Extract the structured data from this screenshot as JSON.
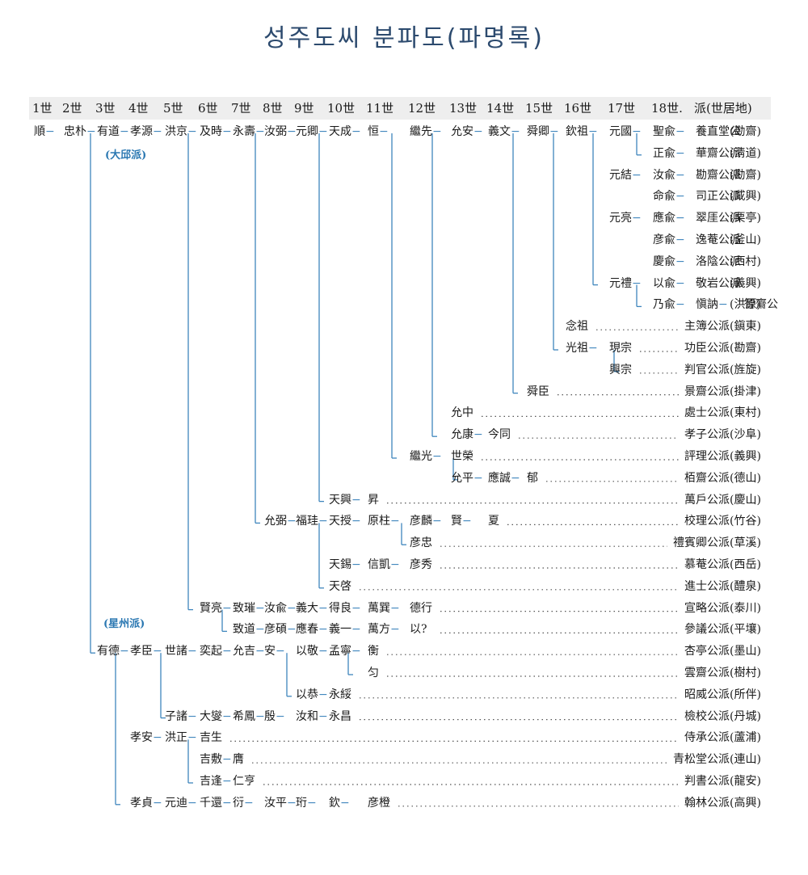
{
  "title": "성주도씨 분파도(파명록)",
  "columns": [
    "1世",
    "2世",
    "3世",
    "4世",
    "5世",
    "6世",
    "7世",
    "8世",
    "9世",
    "10世",
    "11世",
    "12世",
    "13世",
    "14世",
    "15世",
    "16世",
    "17世",
    "18世.",
    "派(世居地)"
  ],
  "branch_labels": [
    "(大邱派)",
    "(星州派)"
  ],
  "rows": [
    {
      "nodes": [
        [
          0,
          "順"
        ],
        [
          1,
          "忠朴"
        ],
        [
          2,
          "有道"
        ],
        [
          3,
          "孝源"
        ],
        [
          4,
          "洪京"
        ],
        [
          5,
          "及時"
        ],
        [
          6,
          "永壽"
        ],
        [
          7,
          "汝弼"
        ],
        [
          8,
          "元卿"
        ],
        [
          9,
          "天成"
        ],
        [
          10,
          "恒"
        ],
        [
          11,
          "繼先"
        ],
        [
          12,
          "允安"
        ],
        [
          13,
          "義文"
        ],
        [
          14,
          "舜卿"
        ],
        [
          15,
          "欽祖"
        ],
        [
          16,
          "元國"
        ],
        [
          17,
          "聖兪"
        ],
        [
          18,
          "養直堂公"
        ]
      ],
      "pai": "",
      "loc": "(勘齋)"
    },
    {
      "nodes": [
        [
          17,
          "正兪"
        ],
        [
          18,
          "華齋公派"
        ]
      ],
      "pai": "",
      "loc": "(淸道)"
    },
    {
      "nodes": [
        [
          16,
          "元結"
        ],
        [
          17,
          "汝兪"
        ],
        [
          18,
          "勘齋公派"
        ]
      ],
      "pai": "",
      "loc": "(勘齋)"
    },
    {
      "nodes": [
        [
          17,
          "命兪"
        ],
        [
          18,
          "司正公派"
        ]
      ],
      "pai": "",
      "loc": "(咸興)"
    },
    {
      "nodes": [
        [
          16,
          "元亮"
        ],
        [
          17,
          "應兪"
        ],
        [
          18,
          "翠厓公派"
        ]
      ],
      "pai": "",
      "loc": "(栗亭)"
    },
    {
      "nodes": [
        [
          17,
          "彦兪"
        ],
        [
          18,
          "逸菴公派"
        ]
      ],
      "pai": "",
      "loc": "(釜山)"
    },
    {
      "nodes": [
        [
          17,
          "慶兪"
        ],
        [
          18,
          "洛陰公派"
        ]
      ],
      "pai": "",
      "loc": "(西村)"
    },
    {
      "nodes": [
        [
          16,
          "元禮"
        ],
        [
          17,
          "以兪"
        ],
        [
          18,
          "敬岩公派"
        ]
      ],
      "pai": "",
      "loc": "(義興)"
    },
    {
      "nodes": [
        [
          17,
          "乃兪"
        ],
        [
          18,
          "愼訥"
        ],
        [
          19,
          "智齋公"
        ]
      ],
      "pai": "",
      "loc": "(洪原)"
    },
    {
      "nodes": [
        [
          15,
          "念祖"
        ]
      ],
      "pai": "主簿公派",
      "loc": "(鎭東)"
    },
    {
      "nodes": [
        [
          15,
          "光祖"
        ],
        [
          16,
          "現宗"
        ]
      ],
      "pai": "功臣公派",
      "loc": "(勘齋)"
    },
    {
      "nodes": [
        [
          16,
          "興宗"
        ]
      ],
      "pai": "判官公派",
      "loc": "(旌旋)"
    },
    {
      "nodes": [
        [
          14,
          "舜臣"
        ]
      ],
      "pai": "景齋公派",
      "loc": "(掛津)"
    },
    {
      "nodes": [
        [
          12,
          "允中"
        ]
      ],
      "pai": "處士公派",
      "loc": "(東村)"
    },
    {
      "nodes": [
        [
          12,
          "允康"
        ],
        [
          13,
          "今同"
        ]
      ],
      "pai": "孝子公派",
      "loc": "(沙阜)"
    },
    {
      "nodes": [
        [
          11,
          "繼光"
        ],
        [
          12,
          "世榮"
        ]
      ],
      "pai": "評理公派",
      "loc": "(義興)"
    },
    {
      "nodes": [
        [
          12,
          "允平"
        ],
        [
          13,
          "應誠"
        ],
        [
          14,
          "郁"
        ]
      ],
      "pai": "栢齋公派",
      "loc": "(德山)"
    },
    {
      "nodes": [
        [
          9,
          "天興"
        ],
        [
          10,
          "昇"
        ]
      ],
      "pai": "萬戶公派",
      "loc": "(慶山)"
    },
    {
      "nodes": [
        [
          7,
          "允弼"
        ],
        [
          8,
          "福珪"
        ],
        [
          9,
          "天授"
        ],
        [
          10,
          "原柱"
        ],
        [
          11,
          "彦麟"
        ],
        [
          12,
          "賢"
        ],
        [
          13,
          "夏"
        ]
      ],
      "pai": "校理公派",
      "loc": "(竹谷)"
    },
    {
      "nodes": [
        [
          11,
          "彦忠"
        ]
      ],
      "pai": "禮賓卿公派",
      "loc": "(草溪)"
    },
    {
      "nodes": [
        [
          9,
          "天錫"
        ],
        [
          10,
          "信凱"
        ],
        [
          11,
          "彦秀"
        ]
      ],
      "pai": "慕菴公派",
      "loc": "(西岳)"
    },
    {
      "nodes": [
        [
          9,
          "天啓"
        ]
      ],
      "pai": "進士公派",
      "loc": "(醴泉)"
    },
    {
      "nodes": [
        [
          5,
          "賢亮"
        ],
        [
          6,
          "致璀"
        ],
        [
          7,
          "汝兪"
        ],
        [
          8,
          "義大"
        ],
        [
          9,
          "得良"
        ],
        [
          10,
          "萬巽"
        ],
        [
          11,
          "德行"
        ]
      ],
      "pai": "宣略公派",
      "loc": "(泰川)"
    },
    {
      "nodes": [
        [
          6,
          "致道"
        ],
        [
          7,
          "彦碩"
        ],
        [
          8,
          "應春"
        ],
        [
          9,
          "義一"
        ],
        [
          10,
          "萬方"
        ],
        [
          11,
          "以?"
        ]
      ],
      "pai": "參議公派",
      "loc": "(平壤)"
    },
    {
      "nodes": [
        [
          2,
          "有德"
        ],
        [
          3,
          "孝臣"
        ],
        [
          4,
          "世諸"
        ],
        [
          5,
          "奕起"
        ],
        [
          6,
          "允吉"
        ],
        [
          7,
          "安"
        ],
        [
          8,
          "以敬"
        ],
        [
          9,
          "孟寧"
        ],
        [
          10,
          "衡"
        ]
      ],
      "pai": "杏亭公派",
      "loc": "(墨山)"
    },
    {
      "nodes": [
        [
          10,
          "匀"
        ]
      ],
      "pai": "雲齋公派",
      "loc": "(樹村)"
    },
    {
      "nodes": [
        [
          8,
          "以恭"
        ],
        [
          9,
          "永綏"
        ]
      ],
      "pai": "昭威公派",
      "loc": "(所伴)"
    },
    {
      "nodes": [
        [
          4,
          "子諸"
        ],
        [
          5,
          "大燮"
        ],
        [
          6,
          "希鳳"
        ],
        [
          7,
          "殷"
        ],
        [
          8,
          "汝和"
        ],
        [
          9,
          "永昌"
        ]
      ],
      "pai": "檢校公派",
      "loc": "(丹城)"
    },
    {
      "nodes": [
        [
          3,
          "孝安"
        ],
        [
          4,
          "洪正"
        ],
        [
          5,
          "吉生"
        ]
      ],
      "pai": "侍承公派",
      "loc": "(蘆浦)"
    },
    {
      "nodes": [
        [
          5,
          "吉敷"
        ],
        [
          6,
          "膺"
        ]
      ],
      "pai": "青松堂公派",
      "loc": "(連山)"
    },
    {
      "nodes": [
        [
          5,
          "吉逢"
        ],
        [
          6,
          "仁亨"
        ]
      ],
      "pai": "判書公派",
      "loc": "(龍安)"
    },
    {
      "nodes": [
        [
          3,
          "孝貞"
        ],
        [
          4,
          "元迪"
        ],
        [
          5,
          "千還"
        ],
        [
          6,
          "衍"
        ],
        [
          7,
          "汝平"
        ],
        [
          8,
          "珩"
        ],
        [
          9,
          "欽"
        ],
        [
          10,
          "彦橙"
        ]
      ],
      "pai": "翰林公派",
      "loc": "(高興)"
    }
  ],
  "colors": {
    "title": "#2c4a6e",
    "lines": "#3f86bd",
    "branch_label": "#2b78b2",
    "header_band": "#eeeeee"
  }
}
